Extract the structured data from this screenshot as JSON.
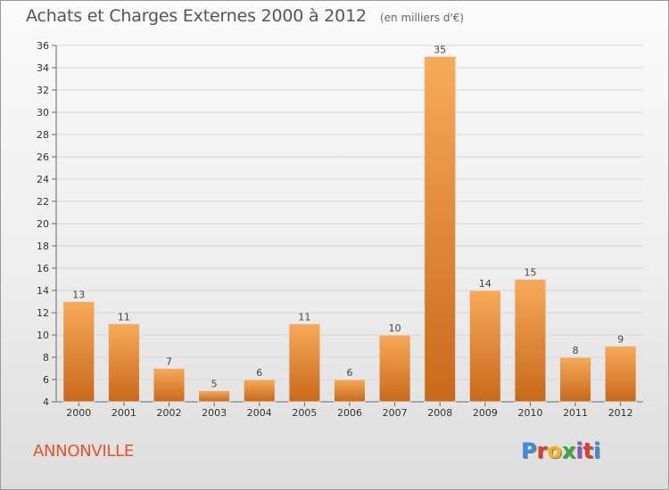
{
  "header": {
    "title": "Achats et Charges Externes 2000 à 2012",
    "unit": "(en milliers d'€)"
  },
  "footer": {
    "town": "ANNONVILLE",
    "logo": {
      "letters": [
        "P",
        "r",
        "o",
        "x",
        "i",
        "t",
        "i"
      ],
      "colors": [
        "#3a8ed8",
        "#e03b2e",
        "#f3b21b",
        "#3fa63a",
        "#8a55c4",
        "#e03b2e",
        "#3a8ed8"
      ]
    }
  },
  "chart_data": {
    "type": "bar",
    "title": "Achats et Charges Externes 2000 à 2012",
    "subtitle": "(en milliers d'€)",
    "xlabel": "",
    "ylabel": "",
    "categories": [
      "2000",
      "2001",
      "2002",
      "2003",
      "2004",
      "2005",
      "2006",
      "2007",
      "2008",
      "2009",
      "2010",
      "2011",
      "2012"
    ],
    "values": [
      13,
      11,
      7,
      5,
      6,
      11,
      6,
      10,
      35,
      14,
      15,
      8,
      9
    ],
    "data_labels": [
      "13",
      "11",
      "7",
      "5",
      "6",
      "11",
      "6",
      "10",
      "35",
      "14",
      "15",
      "8",
      "9"
    ],
    "ylim": [
      4,
      36
    ],
    "yticks": [
      4,
      6,
      8,
      10,
      12,
      14,
      16,
      18,
      20,
      22,
      24,
      26,
      28,
      30,
      32,
      34,
      36
    ],
    "grid": true,
    "colors": {
      "bar": "#f0913a",
      "bar_light": "#f7aa5a",
      "bar_dark": "#c9681a",
      "grid": "#d6d6d6"
    }
  }
}
